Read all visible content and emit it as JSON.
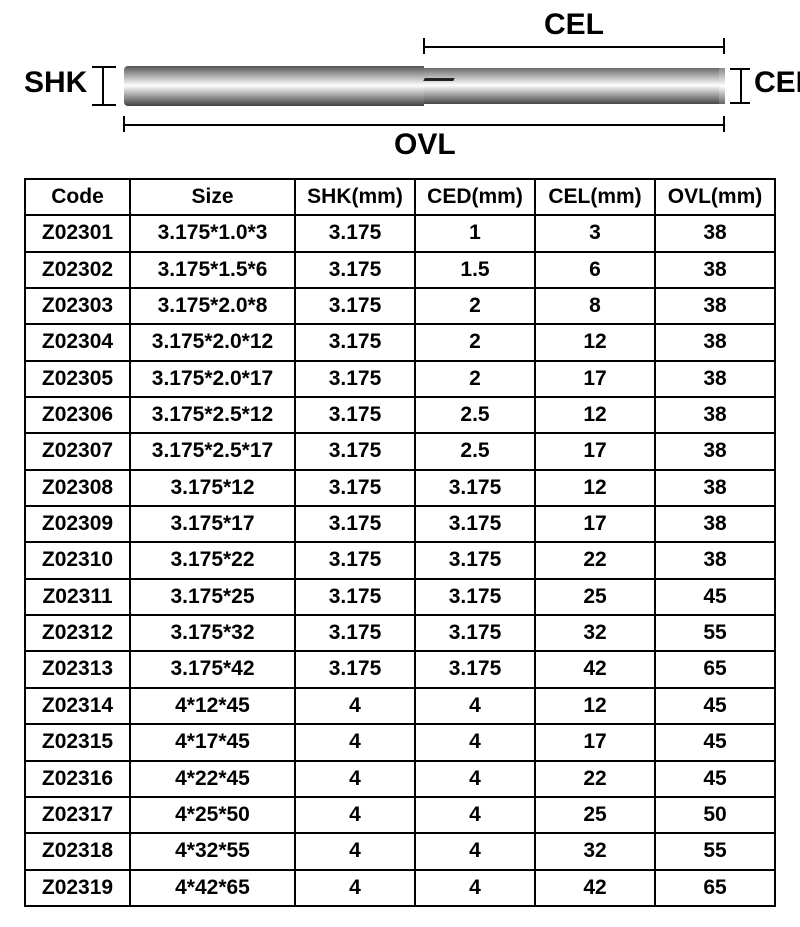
{
  "diagram": {
    "label_shk": "SHK",
    "label_cel": "CEL",
    "label_ced": "CED",
    "label_ovl": "OVL",
    "label_fontsize": 30,
    "label_color": "#000000",
    "line_color": "#000000"
  },
  "table": {
    "border_color": "#000000",
    "header_fontsize": 21,
    "cell_fontsize": 21,
    "font_weight": "700",
    "background_color": "#ffffff",
    "columns": [
      "Code",
      "Size",
      "SHK(mm)",
      "CED(mm)",
      "CEL(mm)",
      "OVL(mm)"
    ],
    "column_widths_pct": [
      14,
      22,
      16,
      16,
      16,
      16
    ],
    "rows": [
      [
        "Z02301",
        "3.175*1.0*3",
        "3.175",
        "1",
        "3",
        "38"
      ],
      [
        "Z02302",
        "3.175*1.5*6",
        "3.175",
        "1.5",
        "6",
        "38"
      ],
      [
        "Z02303",
        "3.175*2.0*8",
        "3.175",
        "2",
        "8",
        "38"
      ],
      [
        "Z02304",
        "3.175*2.0*12",
        "3.175",
        "2",
        "12",
        "38"
      ],
      [
        "Z02305",
        "3.175*2.0*17",
        "3.175",
        "2",
        "17",
        "38"
      ],
      [
        "Z02306",
        "3.175*2.5*12",
        "3.175",
        "2.5",
        "12",
        "38"
      ],
      [
        "Z02307",
        "3.175*2.5*17",
        "3.175",
        "2.5",
        "17",
        "38"
      ],
      [
        "Z02308",
        "3.175*12",
        "3.175",
        "3.175",
        "12",
        "38"
      ],
      [
        "Z02309",
        "3.175*17",
        "3.175",
        "3.175",
        "17",
        "38"
      ],
      [
        "Z02310",
        "3.175*22",
        "3.175",
        "3.175",
        "22",
        "38"
      ],
      [
        "Z02311",
        "3.175*25",
        "3.175",
        "3.175",
        "25",
        "45"
      ],
      [
        "Z02312",
        "3.175*32",
        "3.175",
        "3.175",
        "32",
        "55"
      ],
      [
        "Z02313",
        "3.175*42",
        "3.175",
        "3.175",
        "42",
        "65"
      ],
      [
        "Z02314",
        "4*12*45",
        "4",
        "4",
        "12",
        "45"
      ],
      [
        "Z02315",
        "4*17*45",
        "4",
        "4",
        "17",
        "45"
      ],
      [
        "Z02316",
        "4*22*45",
        "4",
        "4",
        "22",
        "45"
      ],
      [
        "Z02317",
        "4*25*50",
        "4",
        "4",
        "25",
        "50"
      ],
      [
        "Z02318",
        "4*32*55",
        "4",
        "4",
        "32",
        "55"
      ],
      [
        "Z02319",
        "4*42*65",
        "4",
        "4",
        "42",
        "65"
      ]
    ]
  }
}
